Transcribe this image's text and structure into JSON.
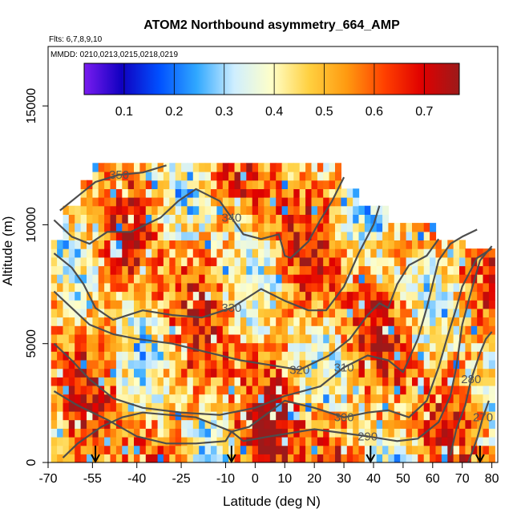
{
  "chart_data": {
    "type": "heatmap",
    "title": "ATOM2 Northbound asymmetry_664_AMP",
    "annotations": [
      "Flts: 6,7,8,9,10",
      "MMDD: 0210,0213,0215,0218,0219"
    ],
    "xlabel": "Latitude (deg N)",
    "ylabel": "Altitude (m)",
    "xlim": [
      -70,
      82
    ],
    "ylim": [
      0,
      17500
    ],
    "x_ticks": [
      -70,
      -55,
      -40,
      -25,
      -10,
      0,
      10,
      20,
      30,
      40,
      50,
      60,
      70,
      80
    ],
    "x_tick_labels": [
      "-70",
      "-55",
      "-40",
      "-25",
      "-10",
      "0",
      "10",
      "20",
      "30",
      "40",
      "50",
      "60",
      "70",
      "80"
    ],
    "y_ticks": [
      0,
      5000,
      10000,
      15000
    ],
    "y_tick_labels": [
      "0",
      "5000",
      "10000",
      "15000"
    ],
    "colorbar": {
      "range": [
        0.02,
        0.77
      ],
      "ticks": [
        0.1,
        0.2,
        0.3,
        0.4,
        0.5,
        0.6,
        0.7
      ],
      "tick_labels": [
        "0.1",
        "0.2",
        "0.3",
        "0.4",
        "0.5",
        "0.6",
        "0.7"
      ],
      "colors": [
        "#7a1cf0",
        "#1000c0",
        "#0050ff",
        "#30a8ff",
        "#cfeeff",
        "#ffffc8",
        "#ffd040",
        "#ff9a10",
        "#ff4000",
        "#e00000",
        "#9c1a1a"
      ]
    },
    "profile_latitudes": [
      -54,
      -8,
      39,
      76
    ],
    "theta_contours": [
      {
        "label": "280",
        "points": [
          [
            66,
            300
          ],
          [
            68,
            1400
          ],
          [
            71,
            2400
          ],
          [
            73,
            3500
          ],
          [
            76,
            4600
          ],
          [
            78,
            5200
          ],
          [
            80,
            5500
          ]
        ]
      },
      {
        "label": "270",
        "points": [
          [
            72,
            0
          ],
          [
            75,
            1000
          ],
          [
            77,
            1900
          ],
          [
            79,
            2600
          ]
        ]
      },
      {
        "label": "290",
        "points": [
          [
            -65,
            200
          ],
          [
            -60,
            800
          ],
          [
            -52,
            1500
          ],
          [
            -45,
            1900
          ],
          [
            -38,
            2100
          ],
          [
            -20,
            1900
          ],
          [
            -8,
            1300
          ],
          [
            -4,
            900
          ],
          [
            5,
            1100
          ],
          [
            20,
            1400
          ],
          [
            38,
            1100
          ],
          [
            48,
            900
          ],
          [
            55,
            1000
          ],
          [
            62,
            1700
          ],
          [
            66,
            2800
          ],
          [
            68,
            4000
          ],
          [
            70,
            5800
          ],
          [
            73,
            7200
          ],
          [
            76,
            8500
          ],
          [
            80,
            9100
          ]
        ]
      },
      {
        "label": "300",
        "points": [
          [
            -68,
            3000
          ],
          [
            -60,
            2400
          ],
          [
            -50,
            1800
          ],
          [
            -40,
            1100
          ],
          [
            -30,
            800
          ],
          [
            -20,
            800
          ],
          [
            -10,
            900
          ],
          [
            -8,
            1300
          ],
          [
            -2,
            1500
          ],
          [
            10,
            2600
          ],
          [
            20,
            2300
          ],
          [
            30,
            1900
          ],
          [
            38,
            2100
          ],
          [
            45,
            2200
          ],
          [
            52,
            1900
          ],
          [
            58,
            2600
          ],
          [
            62,
            4000
          ],
          [
            65,
            5300
          ],
          [
            68,
            6500
          ],
          [
            70,
            7400
          ],
          [
            75,
            8600
          ],
          [
            80,
            9000
          ]
        ]
      },
      {
        "label": "310",
        "points": [
          [
            -68,
            5000
          ],
          [
            -62,
            4300
          ],
          [
            -56,
            3500
          ],
          [
            -48,
            2700
          ],
          [
            -38,
            2300
          ],
          [
            -25,
            2100
          ],
          [
            -12,
            2000
          ],
          [
            0,
            2300
          ],
          [
            10,
            2800
          ],
          [
            22,
            3200
          ],
          [
            30,
            4000
          ],
          [
            38,
            4500
          ],
          [
            45,
            4300
          ],
          [
            50,
            3800
          ],
          [
            55,
            5200
          ],
          [
            58,
            6500
          ],
          [
            60,
            7500
          ],
          [
            62,
            8500
          ],
          [
            66,
            9200
          ],
          [
            70,
            9500
          ],
          [
            75,
            9800
          ]
        ]
      },
      {
        "label": "320",
        "points": [
          [
            -68,
            7200
          ],
          [
            -62,
            6500
          ],
          [
            -56,
            5800
          ],
          [
            -48,
            5400
          ],
          [
            -40,
            5200
          ],
          [
            -28,
            5000
          ],
          [
            -15,
            4600
          ],
          [
            -5,
            4300
          ],
          [
            5,
            4100
          ],
          [
            15,
            3900
          ],
          [
            25,
            4500
          ],
          [
            32,
            5200
          ],
          [
            38,
            6200
          ],
          [
            42,
            6700
          ],
          [
            45,
            6500
          ],
          [
            48,
            7500
          ],
          [
            52,
            8300
          ],
          [
            58,
            8700
          ],
          [
            62,
            9400
          ]
        ]
      },
      {
        "label": "330",
        "points": [
          [
            -68,
            8800
          ],
          [
            -62,
            8200
          ],
          [
            -58,
            7500
          ],
          [
            -54,
            6500
          ],
          [
            -48,
            6000
          ],
          [
            -38,
            6400
          ],
          [
            -28,
            6200
          ],
          [
            -18,
            6100
          ],
          [
            -8,
            6500
          ],
          [
            2,
            7300
          ],
          [
            10,
            6800
          ],
          [
            18,
            6400
          ],
          [
            24,
            6400
          ],
          [
            30,
            7400
          ],
          [
            35,
            8800
          ],
          [
            40,
            10000
          ],
          [
            42,
            10800
          ]
        ]
      },
      {
        "label": "340",
        "points": [
          [
            -68,
            10200
          ],
          [
            -62,
            9500
          ],
          [
            -56,
            9200
          ],
          [
            -50,
            9700
          ],
          [
            -42,
            9700
          ],
          [
            -32,
            10300
          ],
          [
            -26,
            11000
          ],
          [
            -20,
            11500
          ],
          [
            -12,
            11000
          ],
          [
            -8,
            10300
          ],
          [
            -4,
            9600
          ],
          [
            2,
            9400
          ],
          [
            8,
            9600
          ],
          [
            10,
            8700
          ],
          [
            12,
            8600
          ],
          [
            18,
            9300
          ],
          [
            22,
            10200
          ],
          [
            26,
            11000
          ],
          [
            30,
            12000
          ]
        ]
      },
      {
        "label": "350",
        "points": [
          [
            -66,
            10600
          ],
          [
            -60,
            11200
          ],
          [
            -54,
            11800
          ],
          [
            -46,
            12100
          ],
          [
            -38,
            12200
          ],
          [
            -30,
            12500
          ]
        ]
      }
    ]
  }
}
